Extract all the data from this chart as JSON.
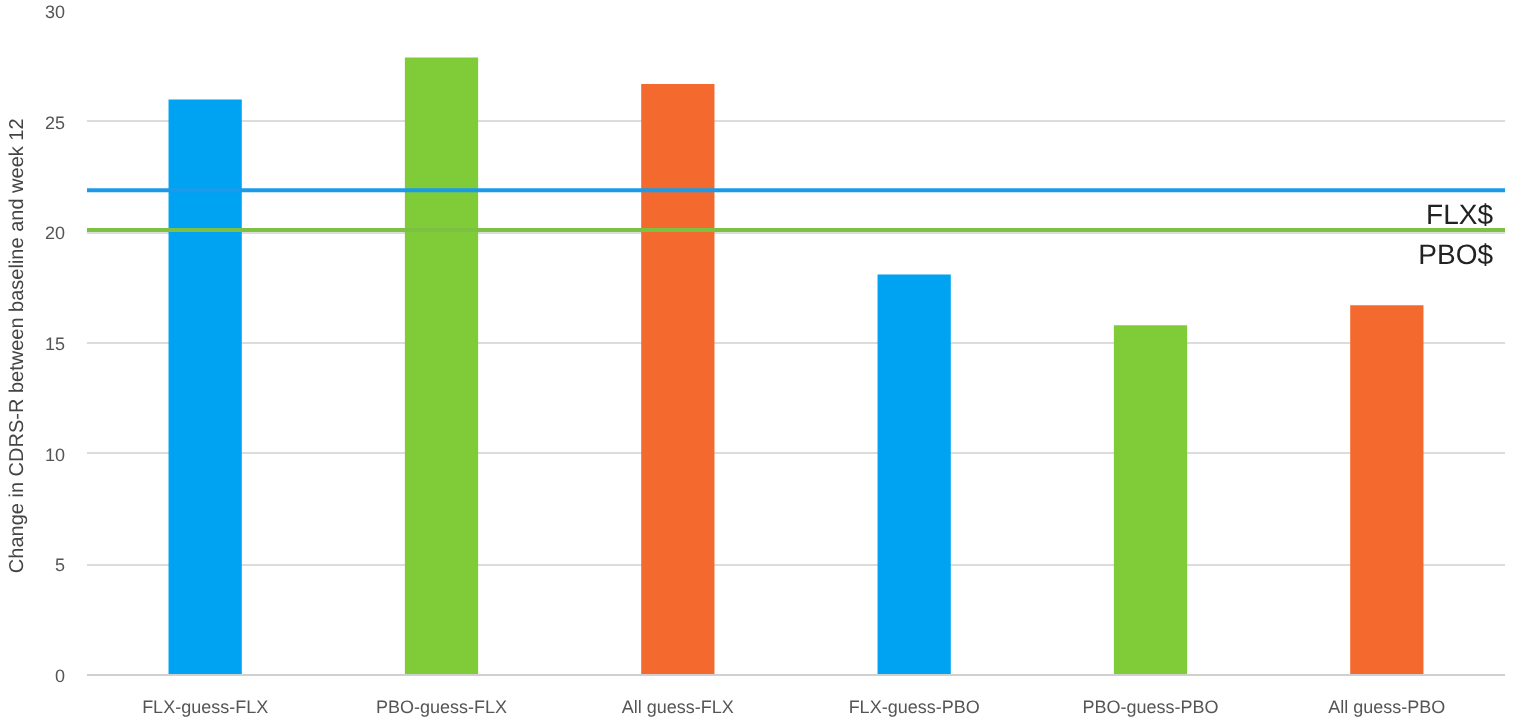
{
  "chart_data": {
    "type": "bar",
    "ylabel": "Change in CDRS-R  between baseline and week 12",
    "categories": [
      "FLX-guess-FLX",
      "PBO-guess-FLX",
      "All guess-FLX",
      "FLX-guess-PBO",
      "PBO-guess-PBO",
      "All guess-PBO"
    ],
    "values": [
      26.0,
      27.9,
      26.7,
      18.1,
      15.8,
      16.7
    ],
    "colors": [
      "#00a2f2",
      "#7fcc38",
      "#f46a2e",
      "#00a2f2",
      "#7fcc38",
      "#f46a2e"
    ],
    "ylim": [
      0,
      30
    ],
    "yticks": [
      0,
      5,
      10,
      15,
      20,
      25,
      30
    ],
    "grid": "y",
    "ref_lines": [
      {
        "axis": "y",
        "value": 21.9,
        "label": "FLX$",
        "color": "#1a9bea"
      },
      {
        "axis": "y",
        "value": 20.1,
        "label": "PBO$",
        "color": "#7cc242"
      }
    ]
  }
}
